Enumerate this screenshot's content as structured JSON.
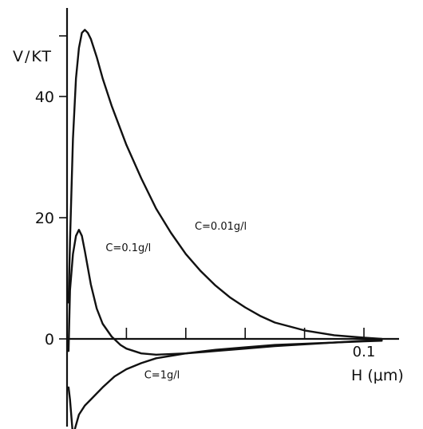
{
  "chart_data": {
    "type": "line",
    "title": "",
    "xlabel": "H (μm)",
    "ylabel": "V/KT",
    "xlim": [
      0,
      0.11
    ],
    "ylim": [
      -15,
      52
    ],
    "x_ticks": [
      0,
      0.02,
      0.04,
      0.06,
      0.08,
      0.1
    ],
    "x_tick_labels": [
      {
        "value": 0.1,
        "label": "0.1"
      }
    ],
    "y_ticks": [
      {
        "value": 0,
        "label": "0"
      },
      {
        "value": 20,
        "label": "20"
      },
      {
        "value": 40,
        "label": "40"
      },
      {
        "value": 50,
        "label": ""
      }
    ],
    "series": [
      {
        "name": "C=0.01g/l",
        "label_anchor": {
          "x": 0.043,
          "y": 18
        },
        "x": [
          0.0005,
          0.001,
          0.002,
          0.003,
          0.004,
          0.005,
          0.006,
          0.007,
          0.008,
          0.01,
          0.012,
          0.015,
          0.02,
          0.025,
          0.03,
          0.035,
          0.04,
          0.045,
          0.05,
          0.055,
          0.06,
          0.065,
          0.07,
          0.08,
          0.09,
          0.1,
          0.106
        ],
        "y": [
          6,
          16,
          33,
          43,
          48,
          50.5,
          51,
          50.5,
          49.5,
          46.5,
          43,
          38.5,
          32,
          26.5,
          21.5,
          17.5,
          14,
          11.2,
          8.8,
          6.8,
          5.2,
          3.8,
          2.7,
          1.4,
          0.6,
          0.2,
          0
        ]
      },
      {
        "name": "C=0.1g/l",
        "label_anchor": {
          "x": 0.013,
          "y": 14.5
        },
        "x": [
          0.0005,
          0.001,
          0.002,
          0.003,
          0.004,
          0.005,
          0.006,
          0.008,
          0.01,
          0.012,
          0.015,
          0.018,
          0.02,
          0.025,
          0.03,
          0.04,
          0.05,
          0.06,
          0.07,
          0.08,
          0.09,
          0.1,
          0.106
        ],
        "y": [
          -2,
          8,
          14,
          17,
          18,
          17,
          14.5,
          9,
          5,
          2.5,
          0.4,
          -1,
          -1.6,
          -2.4,
          -2.6,
          -2.4,
          -2.0,
          -1.6,
          -1.2,
          -0.9,
          -0.6,
          -0.3,
          -0.2
        ]
      },
      {
        "name": "C=1g/l",
        "label_anchor": {
          "x": 0.026,
          "y": -6.5
        },
        "x": [
          0.0005,
          0.001,
          0.002,
          0.004,
          0.006,
          0.008,
          0.012,
          0.016,
          0.02,
          0.025,
          0.03,
          0.04,
          0.05,
          0.06,
          0.07,
          0.08,
          0.09,
          0.1,
          0.106
        ],
        "y": [
          -8,
          -10,
          -16,
          -12.5,
          -11,
          -10,
          -8,
          -6.2,
          -5,
          -4,
          -3.2,
          -2.4,
          -1.8,
          -1.4,
          -1.0,
          -0.8,
          -0.6,
          -0.4,
          -0.3
        ]
      }
    ]
  }
}
